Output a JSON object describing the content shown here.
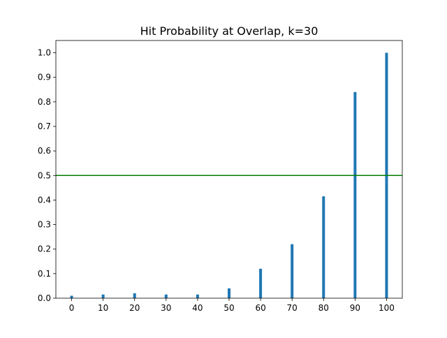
{
  "chart_data": {
    "type": "bar",
    "title": "Hit Probability at Overlap, k=30",
    "xlabel": "",
    "ylabel": "",
    "x": [
      0,
      10,
      20,
      30,
      40,
      50,
      60,
      70,
      80,
      90,
      100
    ],
    "values": [
      0.01,
      0.015,
      0.02,
      0.015,
      0.015,
      0.04,
      0.12,
      0.22,
      0.415,
      0.84,
      1.0
    ],
    "xlim": [
      -5,
      105
    ],
    "ylim": [
      0,
      1.05
    ],
    "xticks": [
      0,
      10,
      20,
      30,
      40,
      50,
      60,
      70,
      80,
      90,
      100
    ],
    "yticks": [
      0.0,
      0.1,
      0.2,
      0.3,
      0.4,
      0.5,
      0.6,
      0.7,
      0.8,
      0.9,
      1.0
    ],
    "ytick_labels": [
      "0.0",
      "0.1",
      "0.2",
      "0.3",
      "0.4",
      "0.5",
      "0.6",
      "0.7",
      "0.8",
      "0.9",
      "1.0"
    ],
    "threshold": 0.5,
    "grid": false,
    "colors": {
      "bar": "#1f77b4",
      "threshold": "#008000",
      "axis": "#000000"
    }
  }
}
